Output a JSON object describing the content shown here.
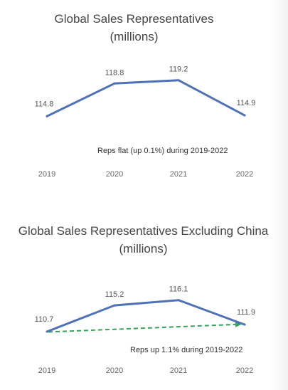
{
  "chart_data": [
    {
      "type": "line",
      "title_line1": "Global Sales Representatives",
      "title_line2": "(millions)",
      "categories": [
        "2019",
        "2020",
        "2021",
        "2022"
      ],
      "values": [
        114.8,
        118.8,
        119.2,
        114.9
      ],
      "value_labels": [
        "114.8",
        "118.8",
        "119.2",
        "114.9"
      ],
      "annotation": "Reps flat (up 0.1%) during 2019-2022",
      "line_color": "#4f71b8",
      "ylim": [
        113.0,
        121.0
      ],
      "grid": false,
      "legend": "none"
    },
    {
      "type": "line",
      "title_line1": "Global Sales Representatives Excluding China",
      "title_line2": "(millions)",
      "categories": [
        "2019",
        "2020",
        "2021",
        "2022"
      ],
      "values": [
        110.7,
        115.2,
        116.1,
        111.9
      ],
      "value_labels": [
        "110.7",
        "115.2",
        "116.1",
        "111.9"
      ],
      "annotation": "Reps up 1.1% during 2019-2022",
      "line_color": "#4f71b8",
      "trend": {
        "from": 110.7,
        "to": 111.9,
        "color": "#35a35a",
        "style": "dashed-arrow"
      },
      "ylim": [
        108.5,
        118.5
      ],
      "grid": false,
      "legend": "none"
    }
  ]
}
